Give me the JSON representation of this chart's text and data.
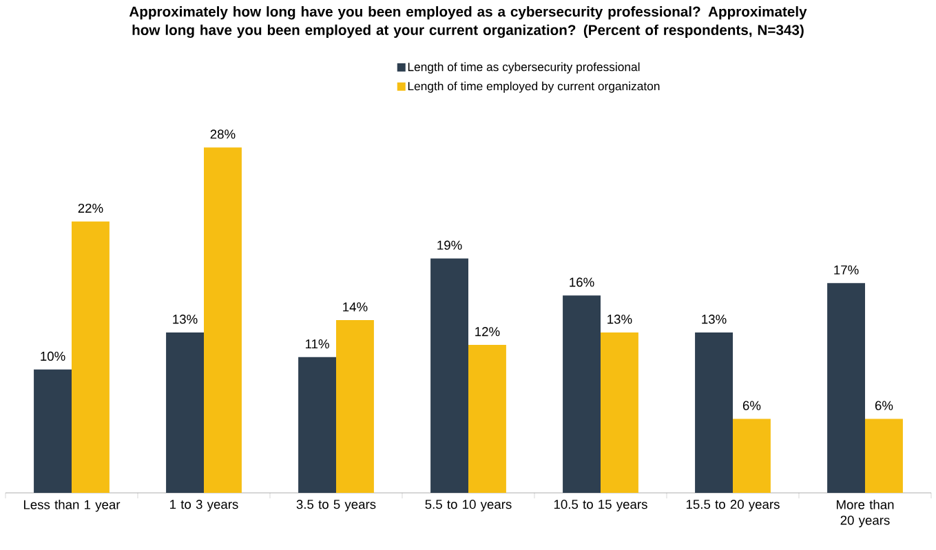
{
  "chart_data": {
    "type": "bar",
    "title": "Approximately how long have you been employed as a cybersecurity professional? Approximately how long have you been employed at your current organization? (Percent of respondents, N=343)",
    "categories": [
      "Less than 1 year",
      "1 to 3 years",
      "3.5 to 5 years",
      "5.5 to 10 years",
      "10.5 to 15 years",
      "15.5 to 20 years",
      "More than 20 years"
    ],
    "series": [
      {
        "name": "Length of time as cybersecurity professional",
        "color": "#2e3f50",
        "values": [
          10,
          13,
          11,
          19,
          16,
          13,
          17
        ],
        "value_labels": [
          "10%",
          "13%",
          "11%",
          "19%",
          "16%",
          "13%",
          "17%"
        ]
      },
      {
        "name": "Length of time employed by current organizaton",
        "color": "#f6be13",
        "values": [
          22,
          28,
          14,
          12,
          13,
          6,
          6
        ],
        "value_labels": [
          "22%",
          "28%",
          "14%",
          "12%",
          "13%",
          "6%",
          "6%"
        ]
      }
    ],
    "legend": "top",
    "data_labels": true
  }
}
